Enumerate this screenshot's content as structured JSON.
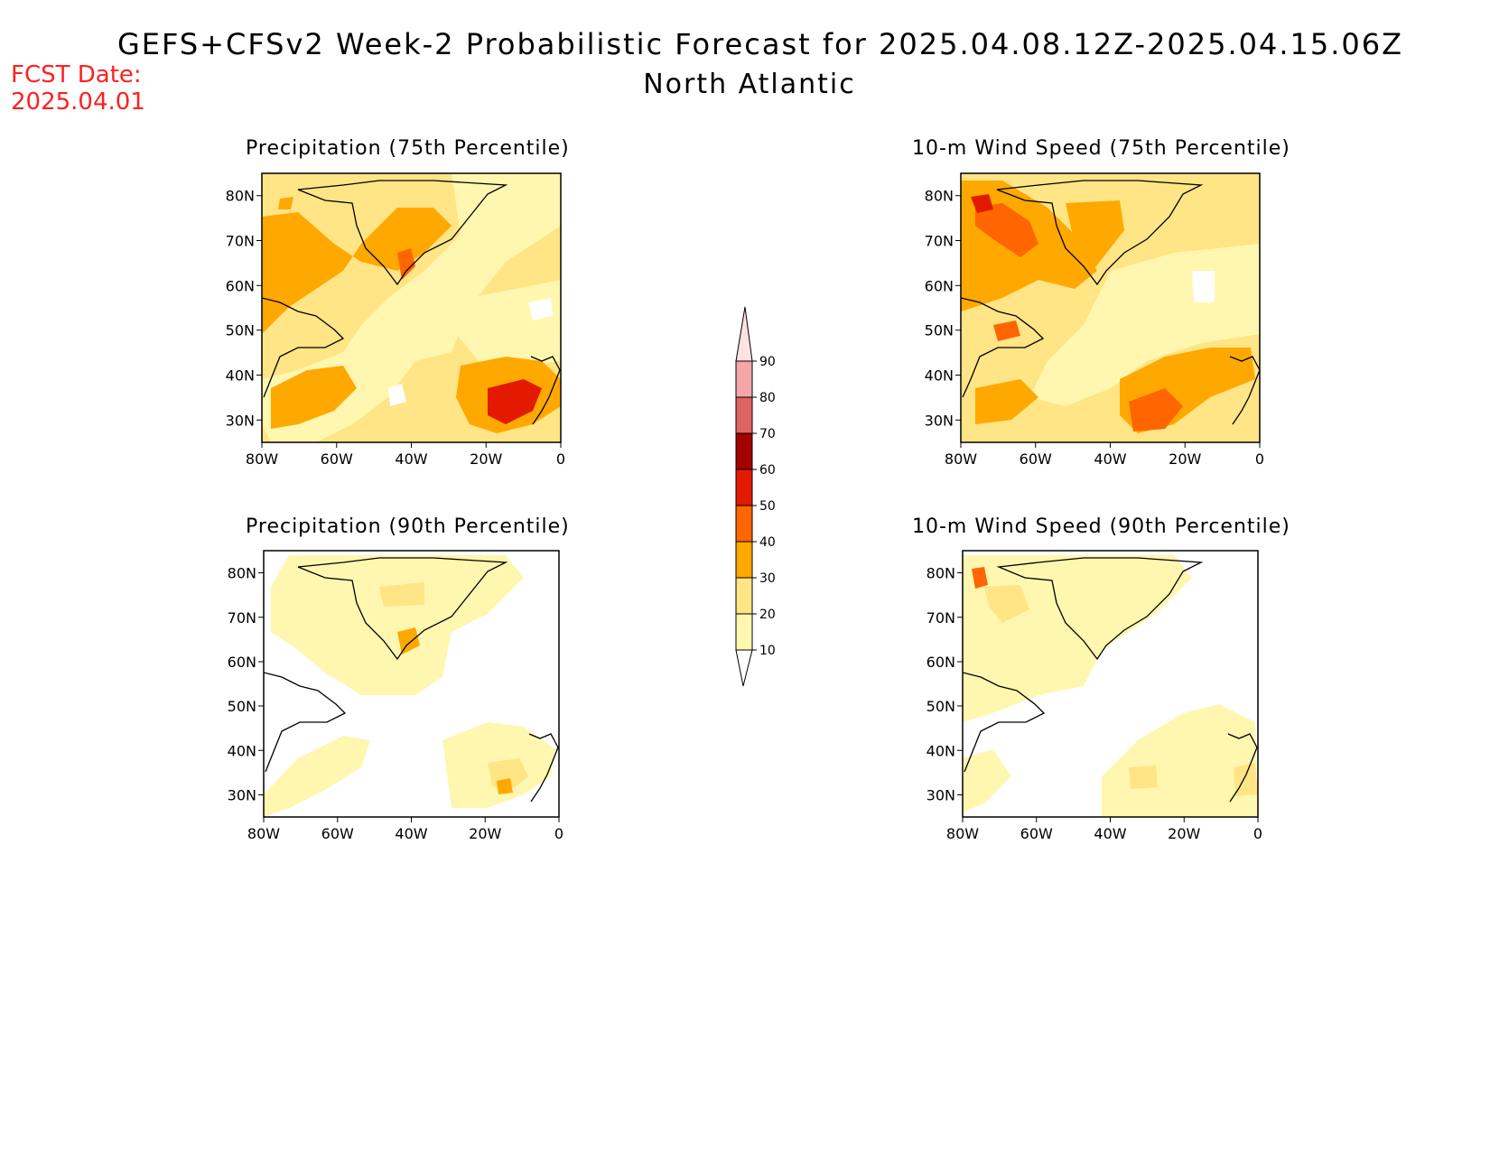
{
  "header": {
    "title": "GEFS+CFSv2 Week-2 Probabilistic Forecast for 2025.04.08.12Z-2025.04.15.06Z",
    "region": "North Atlantic",
    "fcst_label": "FCST Date:",
    "fcst_date": "2025.04.01"
  },
  "panels": [
    {
      "title": "Precipitation (75th Percentile)"
    },
    {
      "title": "10-m Wind Speed (75th Percentile)"
    },
    {
      "title": "Precipitation (90th Percentile)"
    },
    {
      "title": "10-m Wind Speed (90th Percentile)"
    }
  ],
  "axes": {
    "lat_labels": [
      "80N",
      "70N",
      "60N",
      "50N",
      "40N",
      "30N"
    ],
    "lon_labels": [
      "80W",
      "60W",
      "40W",
      "20W",
      "0"
    ]
  },
  "colorbar": {
    "levels": [
      "10",
      "20",
      "30",
      "40",
      "50",
      "60",
      "70",
      "80",
      "90"
    ],
    "colors": [
      "#fff7b0",
      "#ffe585",
      "#ffa800",
      "#ff6500",
      "#e31a00",
      "#a50000",
      "#de6363",
      "#f5a7a7",
      "#ffe3e3"
    ]
  },
  "colors": {
    "coast": "#000000",
    "fcst": "#ff2020"
  }
}
